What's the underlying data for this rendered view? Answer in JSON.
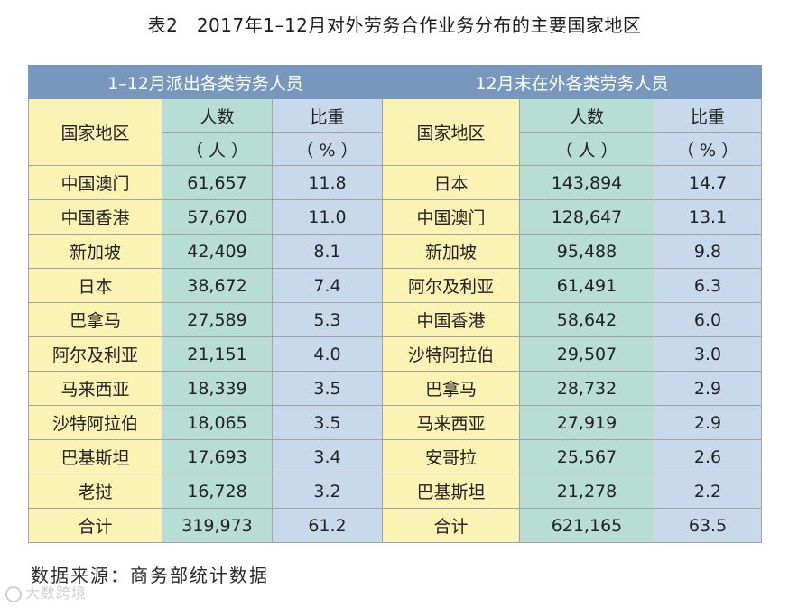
{
  "title": "表2　2017年1–12月对外劳务合作业务分布的主要国家地区",
  "table": {
    "left_group": "1–12月派出各类劳务人员",
    "right_group": "12月末在外各类劳务人员",
    "col_country": "国家地区",
    "col_count": "人数",
    "col_count_unit": "（ 人 ）",
    "col_share": "比重",
    "col_share_unit": "（ % ）",
    "rows": [
      {
        "l_country": "中国澳门",
        "l_count": "61,657",
        "l_share": "11.8",
        "r_country": "日本",
        "r_count": "143,894",
        "r_share": "14.7"
      },
      {
        "l_country": "中国香港",
        "l_count": "57,670",
        "l_share": "11.0",
        "r_country": "中国澳门",
        "r_count": "128,647",
        "r_share": "13.1"
      },
      {
        "l_country": "新加坡",
        "l_count": "42,409",
        "l_share": "8.1",
        "r_country": "新加坡",
        "r_count": "95,488",
        "r_share": "9.8"
      },
      {
        "l_country": "日本",
        "l_count": "38,672",
        "l_share": "7.4",
        "r_country": "阿尔及利亚",
        "r_count": "61,491",
        "r_share": "6.3"
      },
      {
        "l_country": "巴拿马",
        "l_count": "27,589",
        "l_share": "5.3",
        "r_country": "中国香港",
        "r_count": "58,642",
        "r_share": "6.0"
      },
      {
        "l_country": "阿尔及利亚",
        "l_count": "21,151",
        "l_share": "4.0",
        "r_country": "沙特阿拉伯",
        "r_count": "29,507",
        "r_share": "3.0"
      },
      {
        "l_country": "马来西亚",
        "l_count": "18,339",
        "l_share": "3.5",
        "r_country": "巴拿马",
        "r_count": "28,732",
        "r_share": "2.9"
      },
      {
        "l_country": "沙特阿拉伯",
        "l_count": "18,065",
        "l_share": "3.5",
        "r_country": "马来西亚",
        "r_count": "27,919",
        "r_share": "2.9"
      },
      {
        "l_country": "巴基斯坦",
        "l_count": "17,693",
        "l_share": "3.4",
        "r_country": "安哥拉",
        "r_count": "25,567",
        "r_share": "2.6"
      },
      {
        "l_country": "老挝",
        "l_count": "16,728",
        "l_share": "3.2",
        "r_country": "巴基斯坦",
        "r_count": "21,278",
        "r_share": "2.2"
      },
      {
        "l_country": "合计",
        "l_count": "319,973",
        "l_share": "61.2",
        "r_country": "合计",
        "r_count": "621,165",
        "r_share": "63.5"
      }
    ]
  },
  "source": "数据来源：商务部统计数据",
  "watermark": "大数跨境"
}
